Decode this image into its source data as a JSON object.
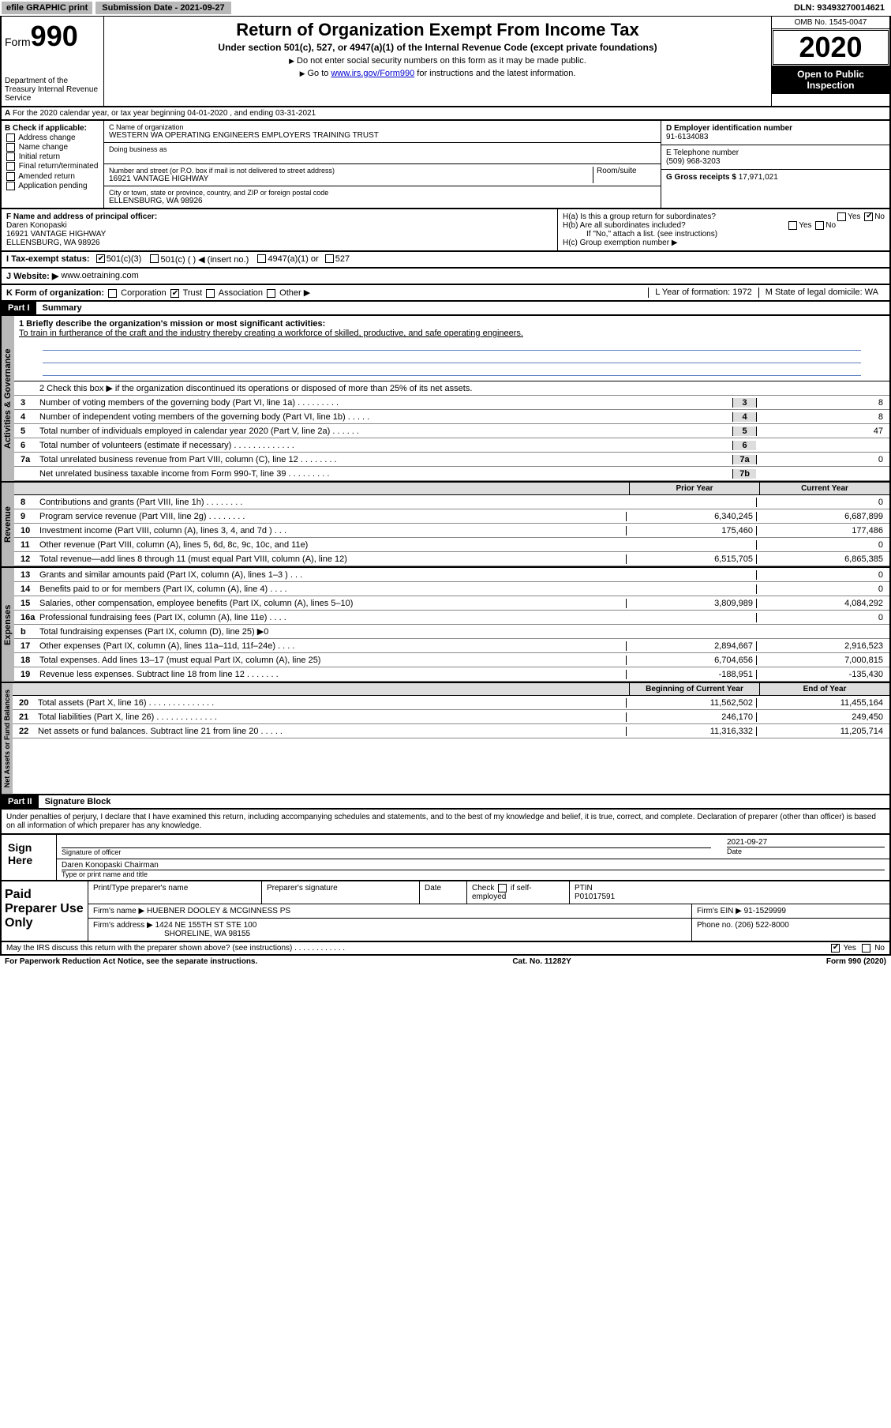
{
  "topbar": {
    "efile": "efile GRAPHIC print",
    "submission_label": "Submission Date - 2021-09-27",
    "dln": "DLN: 93493270014621"
  },
  "header": {
    "form_label": "Form",
    "form_num": "990",
    "dept": "Department of the Treasury Internal Revenue Service",
    "title": "Return of Organization Exempt From Income Tax",
    "subtitle": "Under section 501(c), 527, or 4947(a)(1) of the Internal Revenue Code (except private foundations)",
    "instr1": "Do not enter social security numbers on this form as it may be made public.",
    "instr2_pre": "Go to ",
    "instr2_link": "www.irs.gov/Form990",
    "instr2_post": " for instructions and the latest information.",
    "omb": "OMB No. 1545-0047",
    "year": "2020",
    "open": "Open to Public Inspection"
  },
  "section_a": "For the 2020 calendar year, or tax year beginning 04-01-2020    , and ending 03-31-2021",
  "section_b": {
    "label": "B Check if applicable:",
    "opts": [
      "Address change",
      "Name change",
      "Initial return",
      "Final return/terminated",
      "Amended return",
      "Application pending"
    ]
  },
  "section_c": {
    "name_label": "C Name of organization",
    "name": "WESTERN WA OPERATING ENGINEERS EMPLOYERS TRAINING TRUST",
    "dba_label": "Doing business as",
    "addr_label": "Number and street (or P.O. box if mail is not delivered to street address)",
    "room_label": "Room/suite",
    "addr": "16921 VANTAGE HIGHWAY",
    "city_label": "City or town, state or province, country, and ZIP or foreign postal code",
    "city": "ELLENSBURG, WA  98926"
  },
  "section_d": {
    "label": "D Employer identification number",
    "ein": "91-6134083",
    "tel_label": "E Telephone number",
    "tel": "(509) 968-3203",
    "gross_label": "G Gross receipts $ ",
    "gross": "17,971,021"
  },
  "section_f": {
    "label": "F  Name and address of principal officer:",
    "name": "Daren Konopaski",
    "addr1": "16921 VANTAGE HIGHWAY",
    "addr2": "ELLENSBURG, WA  98926"
  },
  "section_h": {
    "ha": "H(a)  Is this a group return for subordinates?",
    "hb": "H(b)  Are all subordinates included?",
    "hb_note": "If \"No,\" attach a list. (see instructions)",
    "hc": "H(c)  Group exemption number ▶",
    "yes": "Yes",
    "no": "No"
  },
  "section_i": {
    "label": "I  Tax-exempt status:",
    "o1": "501(c)(3)",
    "o2": "501(c) (  ) ◀ (insert no.)",
    "o3": "4947(a)(1) or",
    "o4": "527"
  },
  "section_j": {
    "label": "J   Website: ▶",
    "val": "www.oetraining.com"
  },
  "section_k": {
    "label": "K Form of organization:",
    "o1": "Corporation",
    "o2": "Trust",
    "o3": "Association",
    "o4": "Other ▶",
    "l": "L Year of formation: 1972",
    "m": "M State of legal domicile: WA"
  },
  "part1": {
    "head": "Part I",
    "title": "Summary"
  },
  "summary": {
    "q1_label": "1   Briefly describe the organization's mission or most significant activities:",
    "q1": "To train in furtherance of the craft and the industry thereby creating a workforce of skilled, productive, and safe operating engineers.",
    "q2": "2    Check this box ▶      if the organization discontinued its operations or disposed of more than 25% of its net assets.",
    "headers": {
      "prior": "Prior Year",
      "current": "Current Year",
      "beg": "Beginning of Current Year",
      "end": "End of Year"
    },
    "lines": [
      {
        "n": "3",
        "t": "Number of voting members of the governing body (Part VI, line 1a)  .    .    .    .    .    .    .    .    .",
        "b": "3",
        "v2": "8"
      },
      {
        "n": "4",
        "t": "Number of independent voting members of the governing body (Part VI, line 1b)   .    .    .    .    .",
        "b": "4",
        "v2": "8"
      },
      {
        "n": "5",
        "t": "Total number of individuals employed in calendar year 2020 (Part V, line 2a)   .    .    .    .    .    .",
        "b": "5",
        "v2": "47"
      },
      {
        "n": "6",
        "t": "Total number of volunteers (estimate if necessary)    .    .    .    .    .    .    .    .    .    .    .    .    .",
        "b": "6",
        "v2": ""
      },
      {
        "n": "7a",
        "t": "Total unrelated business revenue from Part VIII, column (C), line 12   .    .    .    .    .    .    .    .",
        "b": "7a",
        "v2": "0"
      },
      {
        "n": "",
        "t": "Net unrelated business taxable income from Form 990-T, line 39   .    .    .    .    .    .    .    .    .",
        "b": "7b",
        "v2": ""
      }
    ],
    "b_label": "b",
    "revenue": [
      {
        "n": "8",
        "t": "Contributions and grants (Part VIII, line 1h)   .    .    .    .    .    .    .    .",
        "v1": "",
        "v2": "0"
      },
      {
        "n": "9",
        "t": "Program service revenue (Part VIII, line 2g)   .    .    .    .    .    .    .    .",
        "v1": "6,340,245",
        "v2": "6,687,899"
      },
      {
        "n": "10",
        "t": "Investment income (Part VIII, column (A), lines 3, 4, and 7d )   .    .    .",
        "v1": "175,460",
        "v2": "177,486"
      },
      {
        "n": "11",
        "t": "Other revenue (Part VIII, column (A), lines 5, 6d, 8c, 9c, 10c, and 11e)",
        "v1": "",
        "v2": "0"
      },
      {
        "n": "12",
        "t": "Total revenue—add lines 8 through 11 (must equal Part VIII, column (A), line 12)",
        "v1": "6,515,705",
        "v2": "6,865,385"
      }
    ],
    "expenses": [
      {
        "n": "13",
        "t": "Grants and similar amounts paid (Part IX, column (A), lines 1–3 )   .    .    .",
        "v1": "",
        "v2": "0"
      },
      {
        "n": "14",
        "t": "Benefits paid to or for members (Part IX, column (A), line 4)   .    .    .    .",
        "v1": "",
        "v2": "0"
      },
      {
        "n": "15",
        "t": "Salaries, other compensation, employee benefits (Part IX, column (A), lines 5–10)",
        "v1": "3,809,989",
        "v2": "4,084,292"
      },
      {
        "n": "16a",
        "t": "Professional fundraising fees (Part IX, column (A), line 11e)   .    .    .    .",
        "v1": "",
        "v2": "0"
      },
      {
        "n": "b",
        "t": "Total fundraising expenses (Part IX, column (D), line 25) ▶0",
        "v1": "",
        "v2": "",
        "gray": true
      },
      {
        "n": "17",
        "t": "Other expenses (Part IX, column (A), lines 11a–11d, 11f–24e)   .    .    .    .",
        "v1": "2,894,667",
        "v2": "2,916,523"
      },
      {
        "n": "18",
        "t": "Total expenses. Add lines 13–17 (must equal Part IX, column (A), line 25)",
        "v1": "6,704,656",
        "v2": "7,000,815"
      },
      {
        "n": "19",
        "t": "Revenue less expenses. Subtract line 18 from line 12   .    .    .    .    .    .    .",
        "v1": "-188,951",
        "v2": "-135,430"
      }
    ],
    "netassets": [
      {
        "n": "20",
        "t": "Total assets (Part X, line 16)   .    .    .    .    .    .    .    .    .    .    .    .    .    .",
        "v1": "11,562,502",
        "v2": "11,455,164"
      },
      {
        "n": "21",
        "t": "Total liabilities (Part X, line 26)   .    .    .    .    .    .    .    .    .    .    .    .    .",
        "v1": "246,170",
        "v2": "249,450"
      },
      {
        "n": "22",
        "t": "Net assets or fund balances. Subtract line 21 from line 20   .    .    .    .    .",
        "v1": "11,316,332",
        "v2": "11,205,714"
      }
    ],
    "vert": {
      "gov": "Activities & Governance",
      "rev": "Revenue",
      "exp": "Expenses",
      "net": "Net Assets or Fund Balances"
    }
  },
  "part2": {
    "head": "Part II",
    "title": "Signature Block"
  },
  "sig": {
    "decl": "Under penalties of perjury, I declare that I have examined this return, including accompanying schedules and statements, and to the best of my knowledge and belief, it is true, correct, and complete. Declaration of preparer (other than officer) is based on all information of which preparer has any knowledge.",
    "sign_here": "Sign Here",
    "sig_officer": "Signature of officer",
    "date": "Date",
    "date_val": "2021-09-27",
    "name_title": "Daren Konopaski  Chairman",
    "type_name": "Type or print name and title"
  },
  "prep": {
    "label": "Paid Preparer Use Only",
    "h1": "Print/Type preparer's name",
    "h2": "Preparer's signature",
    "h3": "Date",
    "check_label": "Check        if self-employed",
    "ptin_label": "PTIN",
    "ptin": "P01017591",
    "firm_label": "Firm's name    ▶",
    "firm": "HUEBNER DOOLEY & MCGINNESS PS",
    "ein_label": "Firm's EIN ▶",
    "ein": "91-1529999",
    "addr_label": "Firm's address ▶",
    "addr1": "1424 NE 155TH ST STE 100",
    "addr2": "SHORELINE, WA  98155",
    "phone_label": "Phone no.",
    "phone": "(206) 522-8000"
  },
  "footer": {
    "discuss": "May the IRS discuss this return with the preparer shown above? (see instructions)    .    .    .    .    .    .    .    .    .    .    .    .",
    "yes": "Yes",
    "no": "No",
    "pra": "For Paperwork Reduction Act Notice, see the separate instructions.",
    "cat": "Cat. No. 11282Y",
    "form": "Form 990 (2020)"
  }
}
